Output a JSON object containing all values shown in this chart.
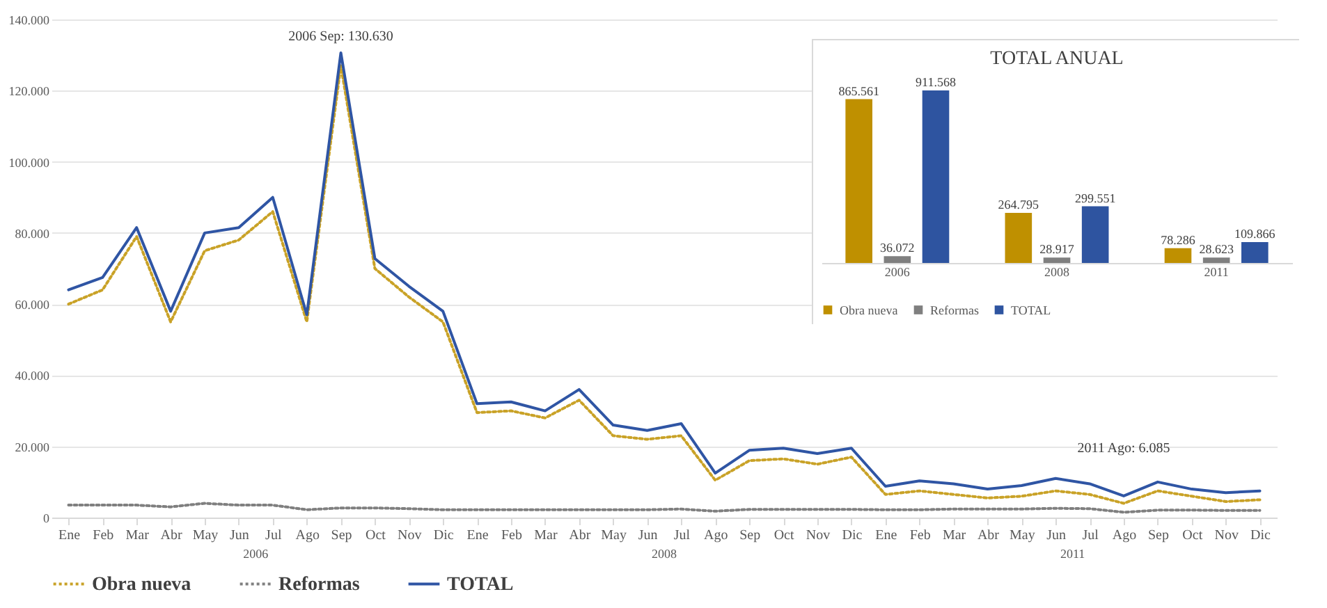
{
  "chart_data": [
    {
      "type": "line",
      "categories": [
        "Ene",
        "Feb",
        "Mar",
        "Abr",
        "May",
        "Jun",
        "Jul",
        "Ago",
        "Sep",
        "Oct",
        "Nov",
        "Dic",
        "Ene",
        "Feb",
        "Mar",
        "Abr",
        "May",
        "Jun",
        "Jul",
        "Ago",
        "Sep",
        "Oct",
        "Nov",
        "Dic",
        "Ene",
        "Feb",
        "Mar",
        "Abr",
        "May",
        "Jun",
        "Jul",
        "Ago",
        "Sep",
        "Oct",
        "Nov",
        "Dic"
      ],
      "series": [
        {
          "name": "Obra nueva",
          "color": "#c9a227",
          "line_style": "dotted",
          "values": [
            60000,
            64000,
            79000,
            55000,
            75000,
            78000,
            86000,
            55000,
            127000,
            70000,
            62000,
            55000,
            29500,
            30000,
            28000,
            33000,
            23000,
            22000,
            23000,
            10500,
            16000,
            16500,
            15000,
            17000,
            6500,
            7500,
            6500,
            5500,
            6000,
            7500,
            6500,
            4000,
            7500,
            6000,
            4500,
            5000
          ]
        },
        {
          "name": "Reformas",
          "color": "#7f7f7f",
          "line_style": "dotted",
          "values": [
            3500,
            3500,
            3500,
            3000,
            4000,
            3500,
            3500,
            2200,
            2700,
            2700,
            2500,
            2200,
            2200,
            2200,
            2200,
            2200,
            2200,
            2200,
            2400,
            1800,
            2300,
            2300,
            2300,
            2300,
            2200,
            2200,
            2400,
            2400,
            2400,
            2600,
            2500,
            1500,
            2100,
            2100,
            2000,
            2000
          ]
        },
        {
          "name": "TOTAL",
          "color": "#2f55a4",
          "line_style": "solid",
          "values": [
            64000,
            67500,
            81500,
            58000,
            80000,
            81500,
            90000,
            57000,
            130630,
            72800,
            65000,
            58000,
            32000,
            32500,
            30000,
            36000,
            26000,
            24500,
            26400,
            12500,
            18900,
            19500,
            18000,
            19500,
            8800,
            10300,
            9500,
            8000,
            9000,
            11000,
            9500,
            6085,
            10000,
            8000,
            7000,
            7500
          ]
        }
      ],
      "ylim": [
        0,
        140000
      ],
      "yticks": [
        0,
        {
          "value": 20000,
          "label": "20.000"
        },
        {
          "value": 40000,
          "label": "40.000"
        },
        {
          "value": 60000,
          "label": "60.000"
        },
        {
          "value": 80000,
          "label": "80.000"
        },
        {
          "value": 100000,
          "label": "100.000"
        },
        {
          "value": 120000,
          "label": "120.000"
        },
        {
          "value": 140000,
          "label": "140.000"
        }
      ],
      "grid": "y",
      "legend": "bottom",
      "marker": "none",
      "annotations": [
        {
          "text": "2006 Sep: 130.630",
          "x": "Sep",
          "y": 130630
        },
        "2011 Ago: 6.085",
        "2006",
        "2008",
        "2011"
      ]
    },
    {
      "type": "bar",
      "title": "TOTAL ANUAL",
      "categories": [
        "2006",
        "2008",
        "2011"
      ],
      "series": [
        {
          "name": "Obra nueva",
          "color": "#bf9000",
          "values": [
            865561,
            264795,
            78286
          ],
          "value_labels": [
            "865.561",
            "264.795",
            "78.286"
          ]
        },
        {
          "name": "Reformas",
          "color": "#7f7f7f",
          "values": [
            36072,
            28917,
            28623
          ],
          "value_labels": [
            "36.072",
            "28.917",
            "28.623"
          ]
        },
        {
          "name": "TOTAL",
          "color": "#2e54a0",
          "values": [
            911568,
            299551,
            109866
          ],
          "value_labels": [
            "911.568",
            "299.551",
            "109.866"
          ]
        }
      ],
      "legend": "bottom"
    }
  ]
}
